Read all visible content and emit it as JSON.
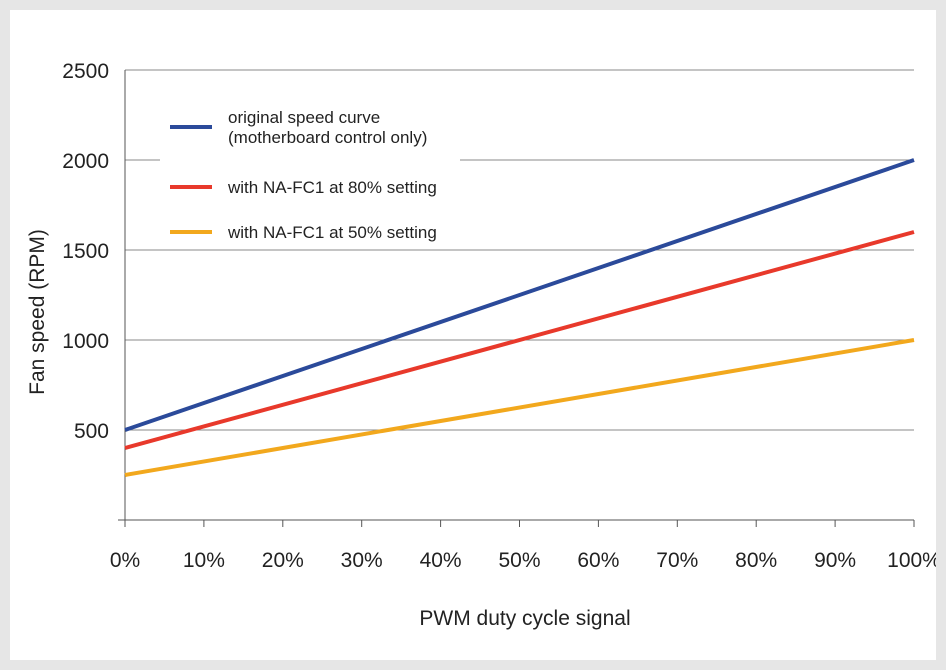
{
  "chart_data": {
    "type": "line",
    "xlabel": "PWM duty cycle signal",
    "ylabel": "Fan speed (RPM)",
    "x": [
      0,
      100
    ],
    "xlim": [
      0,
      100
    ],
    "ylim": [
      0,
      2500
    ],
    "xticks": [
      "0%",
      "10%",
      "20%",
      "30%",
      "40%",
      "50%",
      "60%",
      "70%",
      "80%",
      "90%",
      "100%"
    ],
    "yticks": [
      "500",
      "1000",
      "1500",
      "2000",
      "2500"
    ],
    "grid": "horizontal",
    "legend_position": "top-left",
    "series": [
      {
        "name": "original speed curve\n(motherboard control only)",
        "color": "#2b4a9a",
        "values": [
          500,
          2000
        ]
      },
      {
        "name": "with NA-FC1 at 80% setting",
        "color": "#e8392b",
        "values": [
          400,
          1600
        ]
      },
      {
        "name": "with NA-FC1 at 50% setting",
        "color": "#f2a81d",
        "values": [
          250,
          1000
        ]
      }
    ]
  }
}
